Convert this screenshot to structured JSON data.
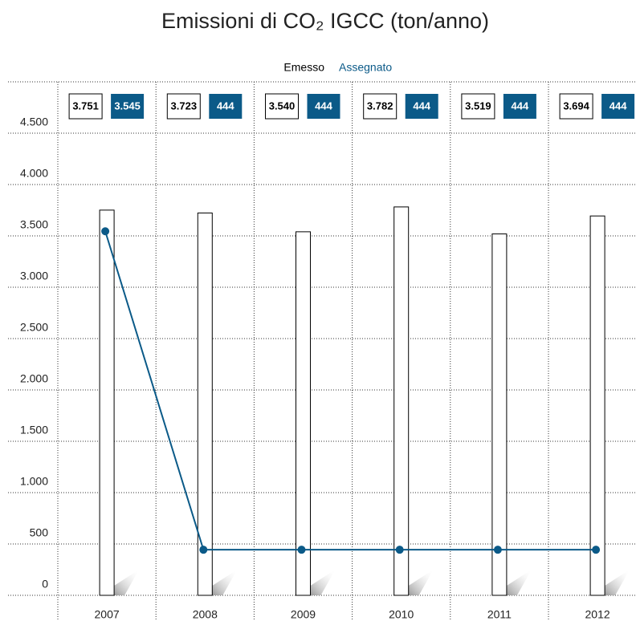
{
  "chart_data": {
    "type": "bar",
    "title": "Emissioni di CO₂ IGCC (ton/anno)",
    "categories": [
      "2007",
      "2008",
      "2009",
      "2010",
      "2011",
      "2012"
    ],
    "series": [
      {
        "name": "Emesso",
        "type": "bar",
        "color": "#000000",
        "values": [
          3751,
          3723,
          3540,
          3782,
          3519,
          3694
        ],
        "value_labels": [
          "3.751",
          "3.723",
          "3.540",
          "3.782",
          "3.519",
          "3.694"
        ]
      },
      {
        "name": "Assegnato",
        "type": "line",
        "color": "#0b5a88",
        "values": [
          3545,
          444,
          444,
          444,
          444,
          444
        ],
        "value_labels": [
          "3.545",
          "444",
          "444",
          "444",
          "444",
          "444"
        ]
      }
    ],
    "ylim": [
      0,
      5000
    ],
    "yticks": [
      0,
      500,
      {
        "value": 1000,
        "label": "1.000"
      },
      {
        "value": 1500,
        "label": "1.500"
      },
      {
        "value": 2000,
        "label": "2.000"
      },
      {
        "value": 2500,
        "label": "2.500"
      },
      {
        "value": 3000,
        "label": "3.000"
      },
      {
        "value": 3500,
        "label": "3.500"
      },
      {
        "value": 4000,
        "label": "4.000"
      },
      {
        "value": 4500,
        "label": "4.500"
      }
    ],
    "grid": true
  }
}
